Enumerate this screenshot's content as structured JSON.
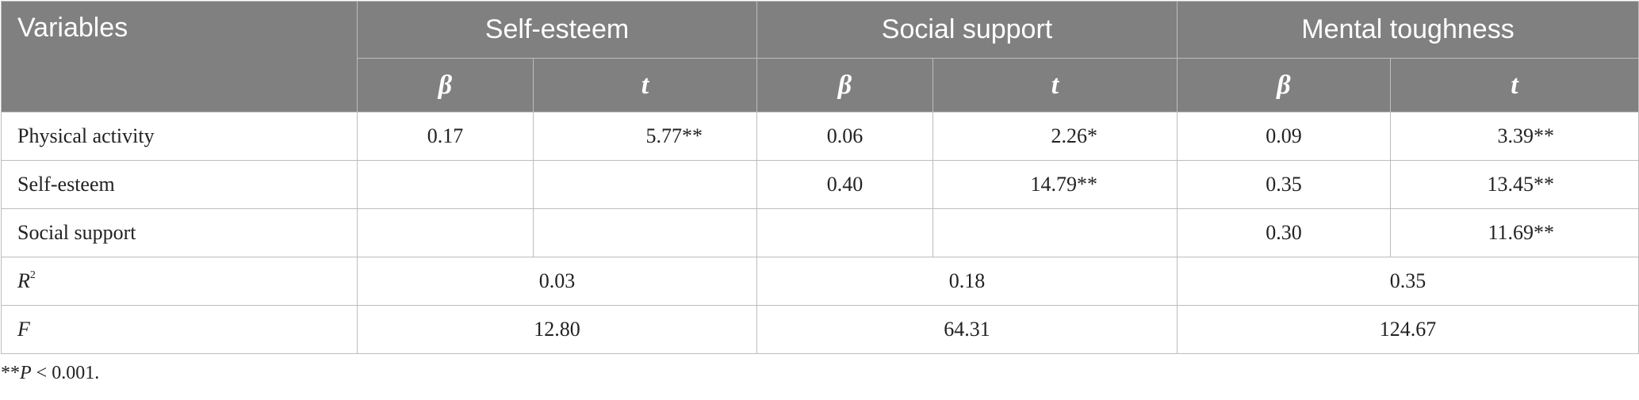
{
  "table": {
    "header": {
      "variables": "Variables",
      "groups": [
        "Self-esteem",
        "Social support",
        "Mental toughness"
      ],
      "sub": [
        "β",
        "t",
        "β",
        "t",
        "β",
        "t"
      ]
    },
    "rows": [
      {
        "label": "Physical activity",
        "cells": [
          "0.17",
          "5.77**",
          "0.06",
          "2.26*",
          "0.09",
          "3.39**"
        ]
      },
      {
        "label": "Self-esteem",
        "cells": [
          "",
          "",
          "0.40",
          "14.79**",
          "0.35",
          "13.45**"
        ]
      },
      {
        "label": "Social support",
        "cells": [
          "",
          "",
          "",
          "",
          "0.30",
          "11.69**"
        ]
      }
    ],
    "r2": {
      "label": "R",
      "sup": "2",
      "values": [
        "0.03",
        "0.18",
        "0.35"
      ]
    },
    "f": {
      "label": "F",
      "values": [
        "12.80",
        "64.31",
        "124.67"
      ]
    }
  },
  "note": {
    "prefix": "**",
    "p": "P",
    "rest": " < 0.001."
  }
}
